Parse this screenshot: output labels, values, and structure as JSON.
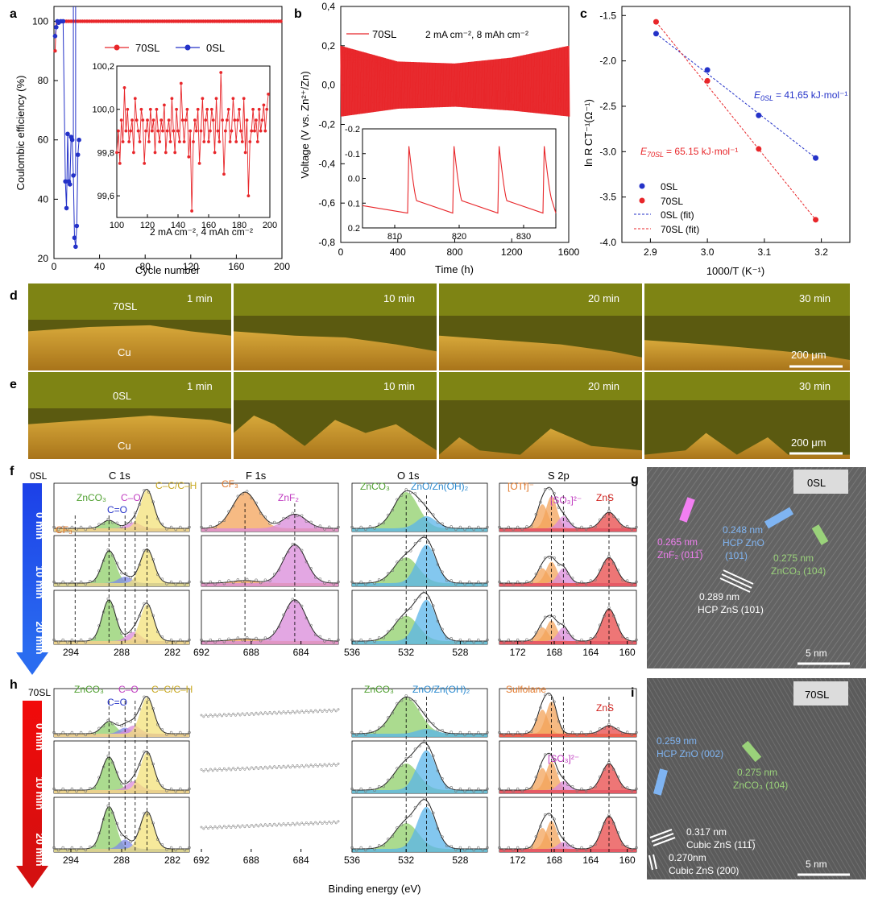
{
  "panel_letters": {
    "a": "a",
    "b": "b",
    "c": "c",
    "d": "d",
    "e": "e",
    "f": "f",
    "g": "g",
    "h": "h",
    "i": "i"
  },
  "colors": {
    "red": "#e8262a",
    "blue": "#2432c8",
    "green": "#8fcf6a",
    "orange": "#f39a4a",
    "purple": "#d66ad6",
    "yellow": "#f3e27a",
    "cyan": "#3aa0e0",
    "salmon": "#e45050"
  },
  "chart_data": [
    {
      "id": "a",
      "type": "scatter",
      "xlabel": "Cycle number",
      "ylabel": "Coulombic efficiency (%)",
      "xlim": [
        0,
        200
      ],
      "ylim": [
        20,
        105
      ],
      "xticks": [
        0,
        40,
        80,
        120,
        160,
        200
      ],
      "yticks": [
        20,
        40,
        60,
        80,
        100
      ],
      "legend": [
        "70SL",
        "0SL"
      ],
      "annotation": "2 mA cm⁻², 4 mAh cm⁻²",
      "series": [
        {
          "name": "70SL",
          "color": "#e8262a",
          "x": [
            1,
            2,
            3,
            4,
            5,
            10,
            20,
            40,
            60,
            80,
            100,
            120,
            140,
            160,
            180,
            200
          ],
          "y": [
            90,
            99.5,
            99.8,
            99.9,
            100,
            100,
            100,
            100,
            100,
            100,
            100,
            100,
            100,
            100,
            100,
            100
          ]
        },
        {
          "name": "0SL",
          "color": "#2432c8",
          "x": [
            1,
            2,
            3,
            4,
            6,
            8,
            10,
            11,
            12,
            13,
            14,
            15,
            16,
            17,
            18,
            19,
            20,
            21,
            22
          ],
          "y": [
            95,
            98,
            100,
            99.5,
            100,
            100,
            46,
            37,
            62,
            46,
            45,
            61,
            60,
            48,
            27,
            24,
            31,
            55,
            60
          ]
        }
      ],
      "inset": {
        "xlim": [
          100,
          200
        ],
        "ylim": [
          99.5,
          100.2
        ],
        "xticks": [
          100,
          120,
          140,
          160,
          180,
          200
        ],
        "yticks": [
          99.6,
          99.8,
          100.0,
          100.2
        ],
        "ytick_labels": [
          "99,6",
          "99,8",
          "100,0",
          "100,2"
        ],
        "y": [
          99.8,
          99.9,
          99.75,
          99.95,
          99.85,
          100.1,
          99.9,
          100.0,
          99.85,
          99.9,
          99.95,
          99.8,
          100.05,
          99.95,
          99.9,
          99.85,
          100.0,
          99.95,
          99.75,
          99.9,
          99.95,
          99.85,
          100.0,
          99.9,
          99.95,
          99.8,
          100.0,
          99.9,
          99.85,
          99.95,
          99.9,
          100.02,
          99.8,
          99.9,
          99.95,
          99.85,
          100.05,
          99.9,
          99.8,
          100.0,
          99.9,
          99.85,
          100.12,
          99.95,
          99.85,
          99.95,
          100.0,
          99.78,
          99.9,
          99.53,
          99.85,
          99.95,
          99.9,
          100.0,
          99.75,
          99.9,
          100.05,
          99.85,
          99.95,
          100.0,
          99.85,
          99.9,
          100.0,
          99.95,
          99.8,
          100.05,
          99.9,
          99.85,
          100.17,
          99.95,
          99.7,
          99.9,
          99.95,
          100.0,
          99.85,
          99.9,
          100.05,
          99.95,
          99.85,
          99.95,
          100.0,
          99.9,
          99.85,
          100.05,
          99.8,
          99.95,
          99.6,
          99.85,
          99.9,
          100.0,
          99.9,
          99.95,
          99.85,
          100.0,
          99.9,
          99.95,
          100.02,
          99.9,
          100.0,
          100.07
        ]
      }
    },
    {
      "id": "b",
      "type": "line",
      "xlabel": "Time (h)",
      "ylabel": "Voltage (V vs. Zn²⁺/Zn)",
      "xlim": [
        0,
        1600
      ],
      "ylim": [
        -0.8,
        0.4
      ],
      "xticks": [
        0,
        400,
        800,
        1200,
        1600
      ],
      "yticks": [
        -0.8,
        -0.6,
        -0.4,
        -0.2,
        0.0,
        0.2,
        0.4
      ],
      "ytick_labels": [
        "-0,8",
        "-0,6",
        "-0,4",
        "-0,2",
        "0,0",
        "0,2",
        "0,4"
      ],
      "legend": [
        "70SL"
      ],
      "annotation": "2 mA cm⁻², 8 mAh cm⁻²",
      "envelope": {
        "t": [
          0,
          400,
          800,
          1200,
          1600
        ],
        "upper": [
          0.2,
          0.12,
          0.11,
          0.14,
          0.2
        ],
        "lower": [
          -0.16,
          -0.12,
          -0.11,
          -0.13,
          -0.16
        ]
      },
      "inset": {
        "xlim": [
          805,
          835
        ],
        "xticks": [
          810,
          820,
          830
        ],
        "ytick_labels": [
          "-0.2",
          "-0.1",
          "0.0",
          "0.1",
          "0.2"
        ],
        "yticks": [
          -0.2,
          -0.1,
          0.0,
          0.1,
          0.2
        ],
        "ylim": [
          -0.2,
          0.2
        ]
      }
    },
    {
      "id": "c",
      "type": "scatter",
      "xlabel": "1000/T (K⁻¹)",
      "ylabel": "ln R CT⁻¹(Ω⁻¹)",
      "xlim": [
        2.85,
        3.25
      ],
      "ylim": [
        -4.0,
        -1.4
      ],
      "xticks": [
        2.9,
        3.0,
        3.1,
        3.2
      ],
      "yticks": [
        -4.0,
        -3.5,
        -3.0,
        -2.5,
        -2.0,
        -1.5
      ],
      "series": [
        {
          "name": "0SL",
          "color": "#2432c8",
          "x": [
            2.91,
            3.0,
            3.09,
            3.19
          ],
          "y": [
            -1.7,
            -2.1,
            -2.6,
            -3.07
          ]
        },
        {
          "name": "70SL",
          "color": "#e8262a",
          "x": [
            2.91,
            3.0,
            3.09,
            3.19
          ],
          "y": [
            -1.57,
            -2.22,
            -2.97,
            -3.75
          ]
        }
      ],
      "legend": [
        "0SL",
        "70SL",
        "0SL (fit)",
        "70SL (fit)"
      ],
      "energy_0SL": "= 41,65 kJ·mol⁻¹",
      "energy_70SL": "= 65.15 kJ·mol⁻¹",
      "e_label": "E",
      "sub_0SL": "0SL",
      "sub_70SL": "70SL"
    }
  ],
  "micro_d": {
    "label": "70SL",
    "cu": "Cu",
    "times": [
      "1 min",
      "10 min",
      "20 min",
      "30 min"
    ],
    "scale": "200 μm"
  },
  "micro_e": {
    "label": "0SL",
    "cu": "Cu",
    "times": [
      "1 min",
      "10 min",
      "20 min",
      "30 min"
    ],
    "scale": "200 μm"
  },
  "xps_f": {
    "sample": "0SL",
    "arrow_labels": [
      "0 min",
      "10 min",
      "20 min"
    ],
    "titles": [
      "C 1s",
      "F 1s",
      "O 1s",
      "S 2p"
    ],
    "c_labels": [
      "ZnCO₃",
      "C–O",
      "C–C/C–H",
      "C=O",
      "CF₃"
    ],
    "f_labels": [
      "CF₃",
      "ZnF₂"
    ],
    "o_labels": [
      "ZnCO₃",
      "ZnO/Zn(OH)₂"
    ],
    "s_labels": [
      "[OTf]⁻",
      "[SO₃]²⁻",
      "ZnS"
    ],
    "xticks_c": [
      "294",
      "288",
      "282"
    ],
    "xticks_f": [
      "692",
      "688",
      "684"
    ],
    "xticks_o": [
      "536",
      "532",
      "528"
    ],
    "xticks_s": [
      "172",
      "168",
      "164",
      "160"
    ]
  },
  "xps_h": {
    "sample": "70SL",
    "arrow_labels": [
      "0 min",
      "10 min",
      "20 min"
    ],
    "c_labels": [
      "ZnCO₃",
      "C–O",
      "C–C/C–H",
      "C=O"
    ],
    "o_labels": [
      "ZnCO₃",
      "ZnO/Zn(OH)₂"
    ],
    "s_labels": [
      "Sulfolane",
      "ZnS",
      "[SO₃]²⁻"
    ],
    "xticks_c": [
      "294",
      "288",
      "282"
    ],
    "xticks_f": [
      "692",
      "688",
      "684"
    ],
    "xticks_o": [
      "536",
      "532",
      "528"
    ],
    "xticks_s": [
      "172",
      "168",
      "164",
      "160"
    ],
    "xlabel": "Binding energy (eV)"
  },
  "tem_g": {
    "sample": "0SL",
    "scale": "5 nm",
    "labels": [
      "0.265 nm",
      "ZnF₂ (011̅)",
      "0.248 nm",
      "HCP ZnO",
      "(101)",
      "0.275 nm",
      "ZnCO₃ (104)",
      "0.289 nm",
      "HCP ZnS (101)"
    ]
  },
  "tem_i": {
    "sample": "70SL",
    "scale": "5 nm",
    "labels": [
      "0.259 nm",
      "HCP ZnO (002)",
      "0.275 nm",
      "ZnCO₃ (104)",
      "0.317 nm",
      "Cubic ZnS (111̅)",
      "0.270nm",
      "Cubic ZnS (200)"
    ]
  }
}
